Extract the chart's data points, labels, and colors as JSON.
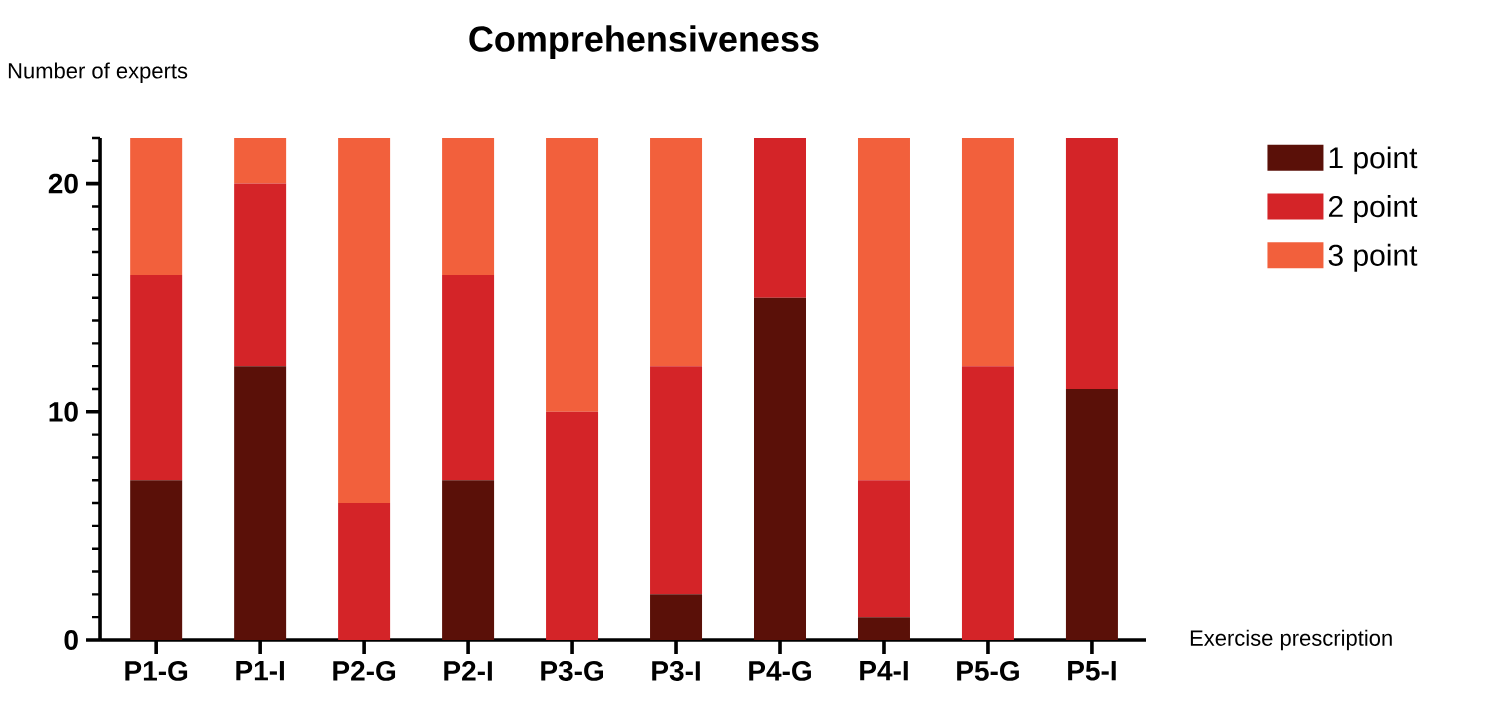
{
  "chart_data": {
    "type": "bar",
    "stacked": true,
    "title": "Comprehensiveness",
    "xlabel": "Exercise prescription",
    "ylabel": "Number of experts",
    "categories": [
      "P1-G",
      "P1-I",
      "P2-G",
      "P2-I",
      "P3-G",
      "P3-I",
      "P4-G",
      "P4-I",
      "P5-G",
      "P5-I"
    ],
    "series": [
      {
        "name": "1 point",
        "color": "#5a1008",
        "values": [
          7,
          12,
          0,
          7,
          0,
          2,
          15,
          1,
          0,
          11
        ]
      },
      {
        "name": "2 point",
        "color": "#d42428",
        "values": [
          9,
          8,
          6,
          9,
          10,
          10,
          7,
          6,
          12,
          11
        ]
      },
      {
        "name": "3 point",
        "color": "#f2603c",
        "values": [
          6,
          2,
          16,
          6,
          12,
          10,
          0,
          15,
          10,
          0
        ]
      }
    ],
    "ylim": [
      0,
      22
    ],
    "yticks": [
      0,
      {
        "value": 1,
        "label": null
      },
      {
        "value": 2,
        "label": null
      },
      {
        "value": 3,
        "label": null
      },
      {
        "value": 4,
        "label": null
      },
      {
        "value": 5,
        "label": null
      },
      {
        "value": 6,
        "label": null
      },
      {
        "value": 7,
        "label": null
      },
      {
        "value": 8,
        "label": null
      },
      {
        "value": 9,
        "label": null
      },
      10,
      {
        "value": 11,
        "label": null
      },
      {
        "value": 12,
        "label": null
      },
      {
        "value": 13,
        "label": null
      },
      {
        "value": 14,
        "label": null
      },
      {
        "value": 15,
        "label": null
      },
      {
        "value": 16,
        "label": null
      },
      {
        "value": 17,
        "label": null
      },
      {
        "value": 18,
        "label": null
      },
      {
        "value": 19,
        "label": null
      },
      20,
      {
        "value": 21,
        "label": null
      },
      {
        "value": 22,
        "label": null
      }
    ],
    "grid": false,
    "legend": "right"
  }
}
